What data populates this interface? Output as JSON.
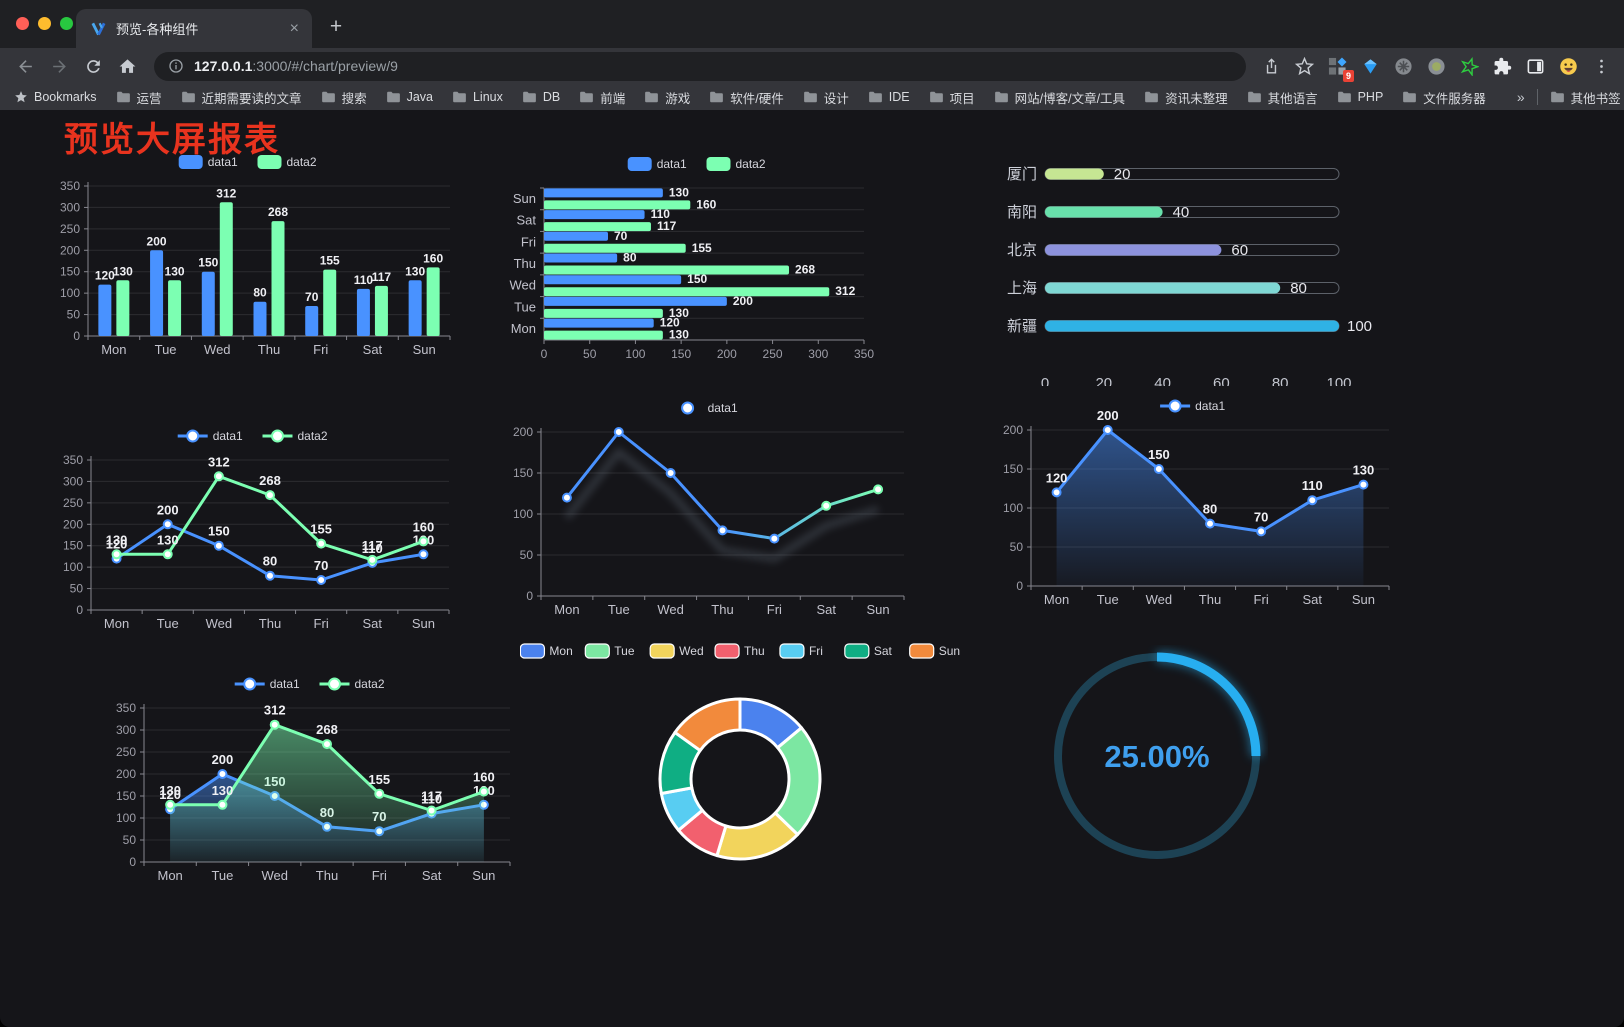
{
  "browser": {
    "traffic_lights": [
      "#ff5f57",
      "#febc2e",
      "#28c840"
    ],
    "tab": {
      "title": "预览-各种组件",
      "close": "×",
      "new_tab": "+"
    },
    "url": {
      "host": "127.0.0.1",
      "rest": ":3000/#/chart/preview/9"
    },
    "extension_badge": "9",
    "bookmarks_bar": {
      "first": "Bookmarks",
      "folders": [
        "运营",
        "近期需要读的文章",
        "搜索",
        "Java",
        "Linux",
        "DB",
        "前端",
        "游戏",
        "软件/硬件",
        "设计",
        "IDE",
        "项目",
        "网站/博客/文章/工具",
        "资讯未整理",
        "其他语言",
        "PHP",
        "文件服务器"
      ],
      "overflow": "»",
      "other": "其他书签"
    }
  },
  "page": {
    "title": "预览大屏报表",
    "title_color": "#e8331e",
    "background": "#151519"
  },
  "chart_data": [
    {
      "id": "bar-vertical",
      "type": "bar",
      "categories": [
        "Mon",
        "Tue",
        "Wed",
        "Thu",
        "Fri",
        "Sat",
        "Sun"
      ],
      "series": [
        {
          "name": "data1",
          "color": "#4992ff",
          "values": [
            120,
            200,
            150,
            80,
            70,
            110,
            130
          ]
        },
        {
          "name": "data2",
          "color": "#7cffb2",
          "values": [
            130,
            130,
            312,
            268,
            155,
            117,
            160
          ]
        }
      ],
      "ylim": [
        0,
        350
      ],
      "ytick_step": 50,
      "grid": true,
      "legend_position": "top",
      "value_labels": true
    },
    {
      "id": "bar-horizontal",
      "type": "bar-horizontal",
      "categories": [
        "Mon",
        "Tue",
        "Wed",
        "Thu",
        "Fri",
        "Sat",
        "Sun"
      ],
      "series": [
        {
          "name": "data1",
          "color": "#4992ff",
          "values": [
            120,
            200,
            150,
            80,
            70,
            110,
            130
          ]
        },
        {
          "name": "data2",
          "color": "#7cffb2",
          "values": [
            130,
            130,
            312,
            268,
            155,
            117,
            160
          ]
        }
      ],
      "xlim": [
        0,
        350
      ],
      "xtick_step": 50,
      "grid": true,
      "legend_position": "top",
      "value_labels": true
    },
    {
      "id": "city-progress",
      "type": "progress",
      "max": 100,
      "ticks": [
        0,
        20,
        40,
        60,
        80,
        100
      ],
      "items": [
        {
          "label": "厦门",
          "value": 20,
          "color": "#c6e693"
        },
        {
          "label": "南阳",
          "value": 40,
          "color": "#68e0ab"
        },
        {
          "label": "北京",
          "value": 60,
          "color": "#8d92dd"
        },
        {
          "label": "上海",
          "value": 80,
          "color": "#7fd7d4"
        },
        {
          "label": "新疆",
          "value": 100,
          "color": "#2fb2e5"
        }
      ]
    },
    {
      "id": "line-dual",
      "type": "line",
      "categories": [
        "Mon",
        "Tue",
        "Wed",
        "Thu",
        "Fri",
        "Sat",
        "Sun"
      ],
      "series": [
        {
          "name": "data1",
          "color": "#4992ff",
          "values": [
            120,
            200,
            150,
            80,
            70,
            110,
            130
          ]
        },
        {
          "name": "data2",
          "color": "#7cffb2",
          "values": [
            130,
            130,
            312,
            268,
            155,
            117,
            160
          ]
        }
      ],
      "ylim": [
        0,
        350
      ],
      "ytick_step": 50,
      "value_labels": true
    },
    {
      "id": "line-gradient",
      "type": "line",
      "categories": [
        "Mon",
        "Tue",
        "Wed",
        "Thu",
        "Fri",
        "Sat",
        "Sun"
      ],
      "series": [
        {
          "name": "data1",
          "color": "#4992ff",
          "color2": "#7cffb2",
          "values": [
            120,
            200,
            150,
            80,
            70,
            110,
            130
          ]
        }
      ],
      "ylim": [
        0,
        200
      ],
      "ytick_step": 50,
      "gradient": true,
      "shadow": true,
      "value_labels": false
    },
    {
      "id": "line-area",
      "type": "line",
      "categories": [
        "Mon",
        "Tue",
        "Wed",
        "Thu",
        "Fri",
        "Sat",
        "Sun"
      ],
      "series": [
        {
          "name": "data1",
          "color": "#4992ff",
          "values": [
            120,
            200,
            150,
            80,
            70,
            110,
            130
          ],
          "area": true
        }
      ],
      "ylim": [
        0,
        200
      ],
      "ytick_step": 50,
      "value_labels": true
    },
    {
      "id": "area-dual",
      "type": "line",
      "categories": [
        "Mon",
        "Tue",
        "Wed",
        "Thu",
        "Fri",
        "Sat",
        "Sun"
      ],
      "series": [
        {
          "name": "data1",
          "color": "#4992ff",
          "values": [
            120,
            200,
            150,
            80,
            70,
            110,
            130
          ],
          "area": true
        },
        {
          "name": "data2",
          "color": "#7cffb2",
          "values": [
            130,
            130,
            312,
            268,
            155,
            117,
            160
          ],
          "area": true
        }
      ],
      "ylim": [
        0,
        350
      ],
      "ytick_step": 50,
      "value_labels": true
    },
    {
      "id": "donut",
      "type": "pie",
      "inner_radius": 49,
      "outer_radius": 80,
      "items": [
        {
          "label": "Mon",
          "value": 120,
          "color": "#4b82ee"
        },
        {
          "label": "Tue",
          "value": 200,
          "color": "#7ce7a2"
        },
        {
          "label": "Wed",
          "value": 150,
          "color": "#f2d45c"
        },
        {
          "label": "Thu",
          "value": 80,
          "color": "#f2606e"
        },
        {
          "label": "Fri",
          "value": 70,
          "color": "#58cdf2"
        },
        {
          "label": "Sat",
          "value": 110,
          "color": "#0fae83"
        },
        {
          "label": "Sun",
          "value": 130,
          "color": "#f28a3c"
        }
      ]
    },
    {
      "id": "gauge",
      "type": "gauge",
      "value_text": "25.00%",
      "percent": 25,
      "color": "#27aef0",
      "track_color": "#1d4254",
      "text_color": "#3f9fee"
    }
  ]
}
